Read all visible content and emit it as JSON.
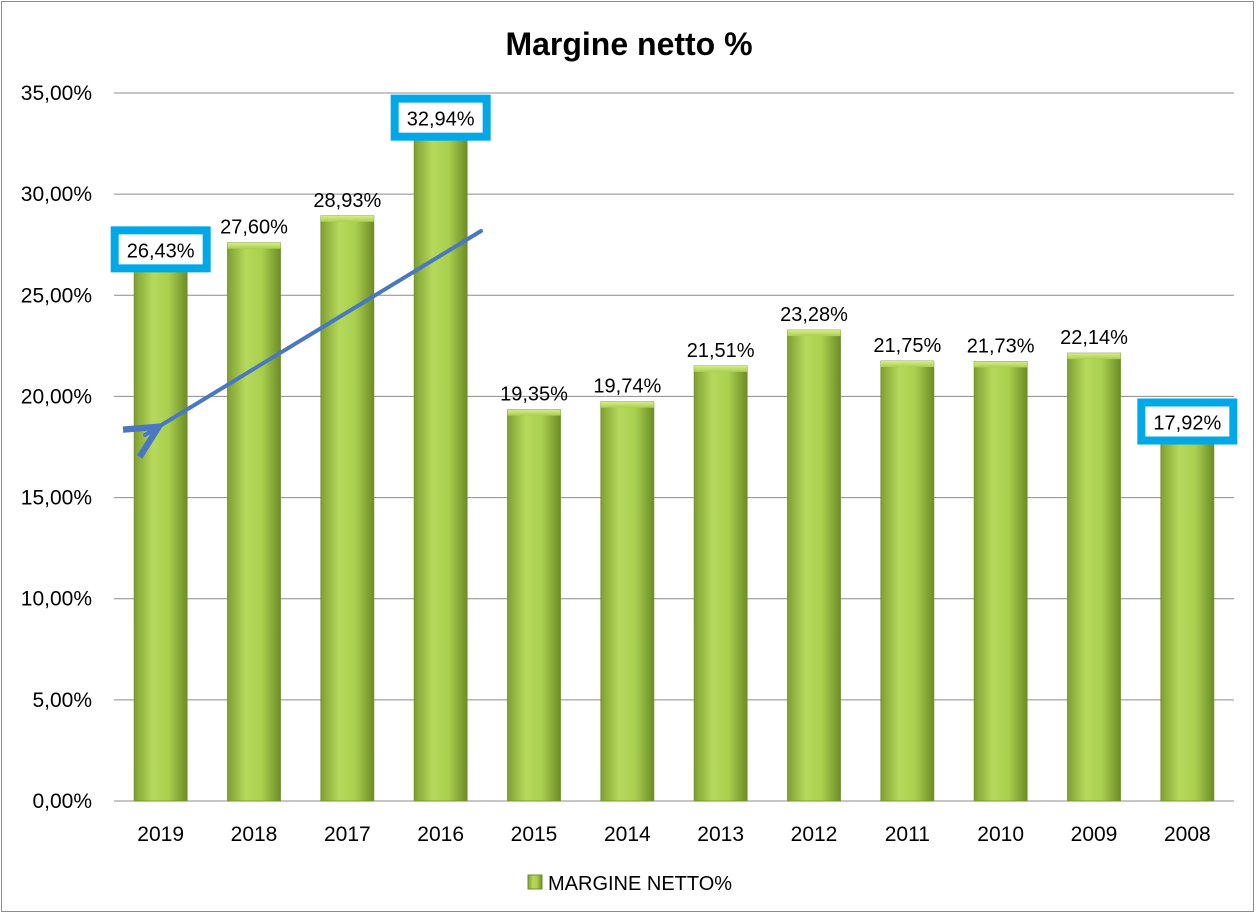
{
  "chart_data": {
    "type": "bar",
    "title": "Margine netto %",
    "categories": [
      "2019",
      "2018",
      "2017",
      "2016",
      "2015",
      "2014",
      "2013",
      "2012",
      "2011",
      "2010",
      "2009",
      "2008"
    ],
    "series": [
      {
        "name": "MARGINE NETTO%",
        "values": [
          26.43,
          27.6,
          28.93,
          32.94,
          19.35,
          19.74,
          21.51,
          23.28,
          21.75,
          21.73,
          22.14,
          17.92
        ],
        "labels": [
          "26,43%",
          "27,60%",
          "28,93%",
          "32,94%",
          "19,35%",
          "19,74%",
          "21,51%",
          "23,28%",
          "21,75%",
          "21,73%",
          "22,14%",
          "17,92%"
        ]
      }
    ],
    "y_ticks": [
      "0,00%",
      "5,00%",
      "10,00%",
      "15,00%",
      "20,00%",
      "25,00%",
      "30,00%",
      "35,00%"
    ],
    "ylim": [
      0,
      35
    ],
    "grid": true,
    "legend_position": "bottom",
    "highlighted_categories": [
      "2019",
      "2016",
      "2008"
    ],
    "annotation": "arrow from 2016 toward 2019",
    "colors": {
      "bar_light": "#c3e26a",
      "bar_mid": "#9bc046",
      "bar_dark": "#6e8f2a",
      "highlight_box": "#00a8e8",
      "arrow": "#4a78c0",
      "grid": "#8c8c8c"
    }
  }
}
